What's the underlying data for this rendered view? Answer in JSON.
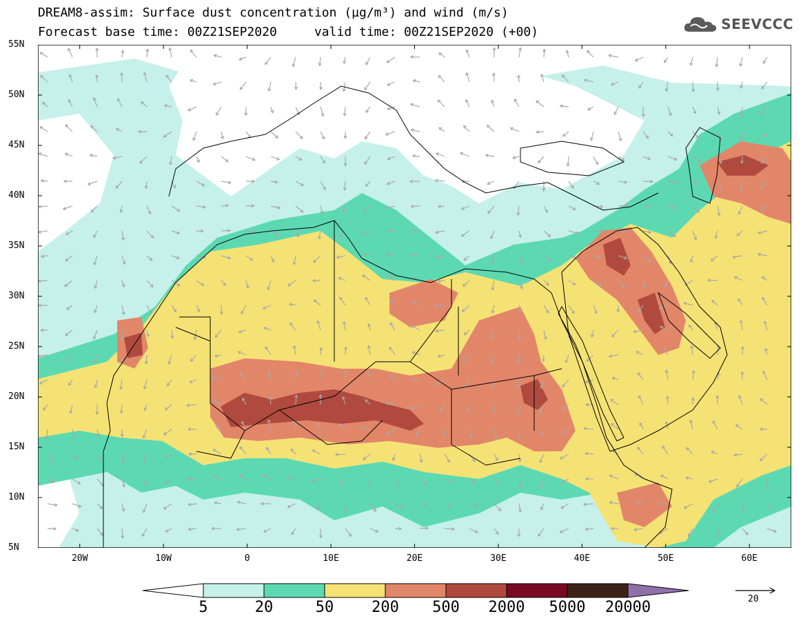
{
  "header": {
    "title_line1": "DREAM8-assim: Surface dust concentration (µg/m³) and wind (m/s)",
    "title_line2": "Forecast base time: 00Z21SEP2020     valid time: 00Z21SEP2020 (+00)",
    "logo_text": "SEEVCCC",
    "logo_icon": "cloud-icon"
  },
  "axes": {
    "lat_labels": [
      "55N",
      "50N",
      "45N",
      "40N",
      "35N",
      "30N",
      "25N",
      "20N",
      "15N",
      "10N",
      "5N"
    ],
    "lon_labels": [
      "20W",
      "10W",
      "0",
      "10E",
      "20E",
      "30E",
      "40E",
      "50E",
      "60E"
    ],
    "lat_range": [
      5,
      55
    ],
    "lon_range": [
      -25,
      65
    ]
  },
  "legend": {
    "labels": [
      "5",
      "20",
      "50",
      "200",
      "500",
      "2000",
      "5000",
      "20000"
    ],
    "colors": [
      "#ffffff",
      "#c5f1ea",
      "#5dd9b2",
      "#f5e275",
      "#e2866a",
      "#b04a3e",
      "#7a0a24",
      "#3d2316",
      "#8f70a9"
    ],
    "wind_reference_value": "20"
  },
  "map_colors": {
    "ocean": "#ffffff",
    "border": "#000000",
    "wind_arrow": "#a8a8a8"
  }
}
